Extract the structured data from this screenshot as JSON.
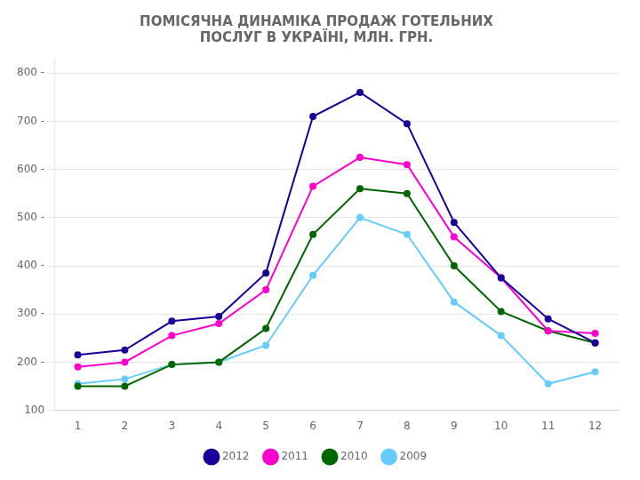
{
  "chart_data": {
    "type": "line",
    "title": "ПОМІСЯЧНА ДИНАМІКА ПРОДАЖ ГОТЕЛЬНИХ\nПОСЛУГ В УКРАЇНІ, МЛН. ГРН.",
    "x": [
      1,
      2,
      3,
      4,
      5,
      6,
      7,
      8,
      9,
      10,
      11,
      12
    ],
    "series": [
      {
        "name": "2012",
        "color": "#1a0099",
        "marker": "circle",
        "values": [
          215,
          225,
          285,
          295,
          385,
          710,
          760,
          695,
          490,
          375,
          290,
          240
        ]
      },
      {
        "name": "2011",
        "color": "#ff00cc",
        "marker": "circle",
        "values": [
          190,
          200,
          255,
          280,
          350,
          565,
          625,
          610,
          460,
          375,
          265,
          260
        ]
      },
      {
        "name": "2010",
        "color": "#006600",
        "marker": "circle",
        "values": [
          150,
          150,
          195,
          200,
          270,
          465,
          560,
          550,
          400,
          305,
          265,
          240
        ]
      },
      {
        "name": "2009",
        "color": "#66ccff",
        "marker": "circle",
        "values": [
          155,
          165,
          195,
          200,
          235,
          380,
          500,
          465,
          325,
          255,
          155,
          180
        ]
      }
    ],
    "xlim": [
      0.5,
      12.5
    ],
    "xticks": [
      1,
      2,
      3,
      4,
      5,
      6,
      7,
      8,
      9,
      10,
      11,
      12
    ],
    "ylim": [
      100,
      830
    ],
    "yticks": [
      100,
      {
        "value": 200,
        "label": "200 -"
      },
      {
        "value": 300,
        "label": "300 -"
      },
      {
        "value": 400,
        "label": "400 -"
      },
      {
        "value": 500,
        "label": "500 -"
      },
      {
        "value": 600,
        "label": "600 -"
      },
      {
        "value": 700,
        "label": "700 -"
      },
      {
        "value": 800,
        "label": "800 -"
      }
    ],
    "grid": "y",
    "legend": "bottom"
  }
}
